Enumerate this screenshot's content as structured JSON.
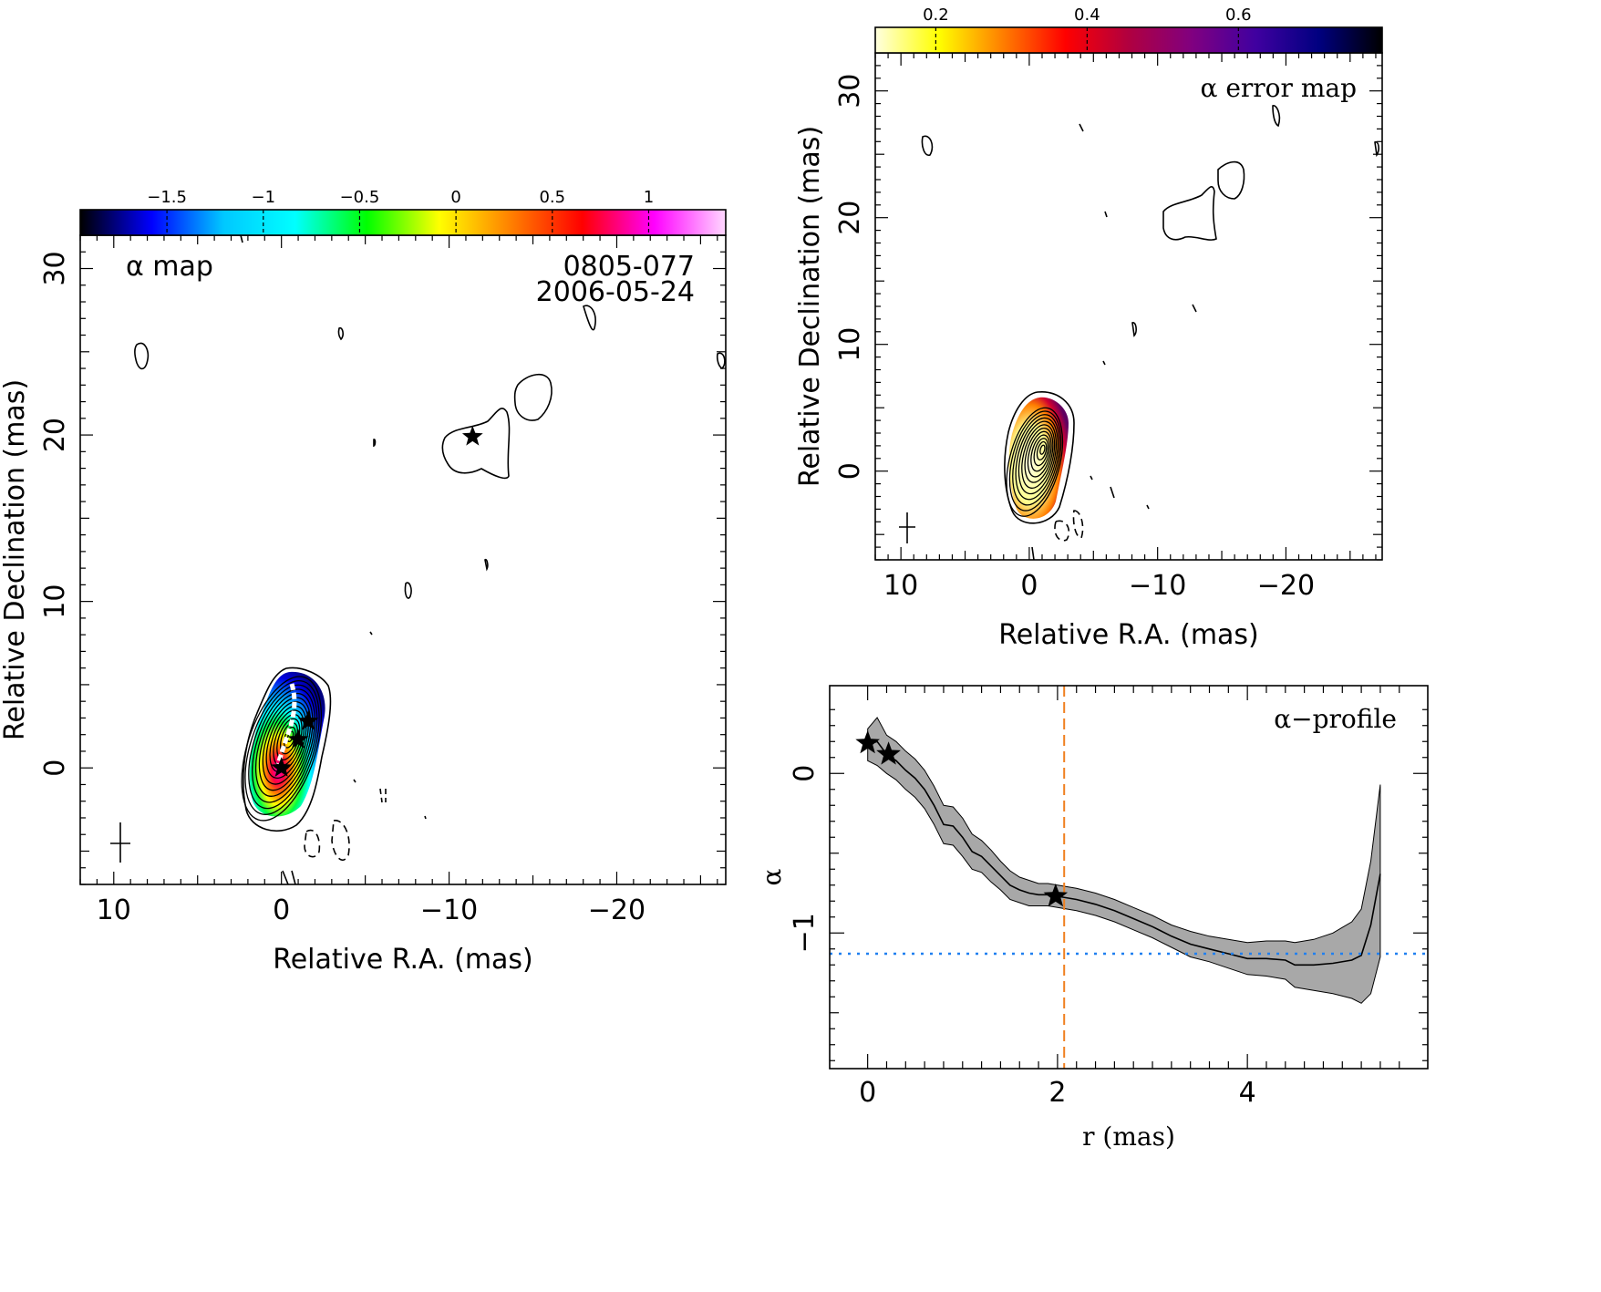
{
  "chart_data": [
    {
      "type": "heatmap",
      "panel": "alpha-map",
      "label": "α map",
      "source_name": "0805-077",
      "date": "2006-05-24",
      "xlabel": "Relative R.A. (mas)",
      "ylabel": "Relative Declination (mas)",
      "xlim": [
        12,
        -26.5
      ],
      "ylim": [
        -7,
        32
      ],
      "xticks": [
        10,
        0,
        -10,
        -20
      ],
      "yticks": [
        0,
        10,
        20,
        30
      ],
      "colorbar": {
        "range": [
          -1.95,
          1.4
        ],
        "ticks": [
          -1.5,
          -1,
          -0.5,
          0,
          0.5,
          1
        ],
        "tick_labels": [
          "−1.5",
          "−1",
          "−0.5",
          "0",
          "0.5",
          "1"
        ],
        "colormap": [
          "#000000",
          "#0000ff",
          "#00c8ff",
          "#00ffff",
          "#00ff00",
          "#ffff00",
          "#ff8000",
          "#ff0000",
          "#ff00ff",
          "#ffd8ff"
        ]
      },
      "stars": [
        {
          "x": 0,
          "y": 0
        },
        {
          "x": -1.0,
          "y": 1.7
        },
        {
          "x": -1.6,
          "y": 2.8
        },
        {
          "x": -11.4,
          "y": 19.9
        }
      ]
    },
    {
      "type": "heatmap",
      "panel": "alpha-error-map",
      "label": "α error map",
      "xlabel": "Relative R.A. (mas)",
      "ylabel": "Relative Declination (mas)",
      "xlim": [
        12,
        -27.5
      ],
      "ylim": [
        -7,
        33
      ],
      "xticks": [
        10,
        0,
        -10,
        -20
      ],
      "yticks": [
        0,
        10,
        20,
        30
      ],
      "colorbar": {
        "range": [
          0.12,
          0.79
        ],
        "ticks": [
          0.2,
          0.4,
          0.6
        ],
        "tick_labels": [
          "0.2",
          "0.4",
          "0.6"
        ],
        "colormap": [
          "#ffffe0",
          "#ffff00",
          "#ff8000",
          "#ff0000",
          "#b00040",
          "#800080",
          "#4000a0",
          "#000080",
          "#000000"
        ]
      }
    },
    {
      "type": "line",
      "panel": "alpha-profile",
      "label": "α−profile",
      "xlabel": "r (mas)",
      "ylabel": "α",
      "xlim": [
        -0.4,
        5.9
      ],
      "ylim": [
        -1.85,
        0.55
      ],
      "xticks": [
        0,
        2,
        4
      ],
      "yticks": [
        0,
        -1
      ],
      "ytick_labels": [
        "0",
        "−1"
      ],
      "x": [
        0.0,
        0.1,
        0.2,
        0.3,
        0.4,
        0.5,
        0.6,
        0.7,
        0.8,
        0.9,
        1.0,
        1.1,
        1.2,
        1.3,
        1.4,
        1.5,
        1.6,
        1.7,
        1.8,
        1.9,
        2.0,
        2.2,
        2.4,
        2.6,
        2.8,
        3.0,
        3.2,
        3.4,
        3.6,
        3.8,
        4.0,
        4.2,
        4.4,
        4.5,
        4.7,
        4.9,
        5.1,
        5.2,
        5.3,
        5.4
      ],
      "alpha": [
        0.18,
        0.2,
        0.12,
        0.08,
        0.02,
        -0.03,
        -0.1,
        -0.2,
        -0.32,
        -0.33,
        -0.4,
        -0.49,
        -0.52,
        -0.58,
        -0.64,
        -0.7,
        -0.73,
        -0.75,
        -0.76,
        -0.76,
        -0.77,
        -0.79,
        -0.82,
        -0.86,
        -0.91,
        -0.96,
        -1.02,
        -1.07,
        -1.1,
        -1.13,
        -1.16,
        -1.16,
        -1.17,
        -1.2,
        -1.2,
        -1.19,
        -1.17,
        -1.14,
        -0.95,
        -0.63
      ],
      "upper": [
        0.28,
        0.35,
        0.24,
        0.2,
        0.14,
        0.09,
        0.02,
        -0.08,
        -0.2,
        -0.21,
        -0.28,
        -0.38,
        -0.42,
        -0.48,
        -0.55,
        -0.61,
        -0.65,
        -0.67,
        -0.69,
        -0.69,
        -0.7,
        -0.72,
        -0.75,
        -0.79,
        -0.84,
        -0.89,
        -0.95,
        -0.99,
        -1.02,
        -1.04,
        -1.06,
        -1.05,
        -1.05,
        -1.06,
        -1.04,
        -1.0,
        -0.93,
        -0.85,
        -0.55,
        -0.07
      ],
      "lower": [
        0.08,
        0.05,
        0.0,
        -0.04,
        -0.1,
        -0.15,
        -0.22,
        -0.32,
        -0.44,
        -0.45,
        -0.52,
        -0.6,
        -0.62,
        -0.68,
        -0.73,
        -0.79,
        -0.81,
        -0.83,
        -0.83,
        -0.83,
        -0.84,
        -0.86,
        -0.89,
        -0.93,
        -0.98,
        -1.03,
        -1.09,
        -1.15,
        -1.18,
        -1.22,
        -1.26,
        -1.27,
        -1.29,
        -1.34,
        -1.36,
        -1.38,
        -1.41,
        -1.44,
        -1.38,
        -1.15
      ],
      "stars": [
        {
          "x": 0.0,
          "y": 0.19
        },
        {
          "x": 0.22,
          "y": 0.12
        },
        {
          "x": 1.98,
          "y": -0.77
        }
      ],
      "vline_x": 2.07,
      "vline_color": "#f08020",
      "hline_y": -1.13,
      "hline_color": "#2080f0"
    }
  ]
}
